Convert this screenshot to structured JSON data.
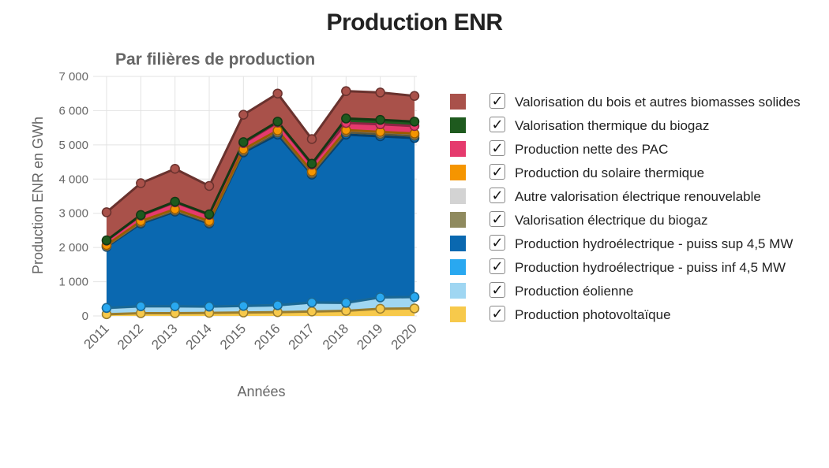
{
  "title": "Production ENR",
  "chart_data": {
    "type": "area",
    "stacked": true,
    "title": "Par filières de production",
    "xlabel": "Années",
    "ylabel": "Production ENR en GWh",
    "ylim": [
      0,
      7000
    ],
    "yticks": [
      0,
      1000,
      2000,
      3000,
      4000,
      5000,
      6000,
      7000
    ],
    "ytick_labels": [
      "0",
      "1 000",
      "2 000",
      "3 000",
      "4 000",
      "5 000",
      "6 000",
      "7 000"
    ],
    "categories": [
      "2011",
      "2012",
      "2013",
      "2014",
      "2015",
      "2016",
      "2017",
      "2018",
      "2019",
      "2020"
    ],
    "grid": true,
    "legend_position": "right",
    "series": [
      {
        "name": "Production photovoltaïque",
        "color": "#f7c94b",
        "values": [
          50,
          80,
          80,
          90,
          100,
          110,
          130,
          150,
          210,
          220
        ]
      },
      {
        "name": "Production éolienne",
        "color": "#9fd6f2",
        "values": [
          180,
          200,
          200,
          180,
          190,
          200,
          260,
          230,
          330,
          330
        ]
      },
      {
        "name": "Production hydroélectrique - puiss inf 4,5 MW",
        "color": "#29a8f0",
        "values": [
          5,
          5,
          5,
          5,
          5,
          5,
          5,
          5,
          5,
          5
        ]
      },
      {
        "name": "Production hydroélectrique - puiss sup 4,5 MW",
        "color": "#0a68b0",
        "values": [
          1785,
          2415,
          2765,
          2425,
          4485,
          4985,
          3735,
          4915,
          4705,
          4645
        ]
      },
      {
        "name": "Valorisation électrique du biogaz",
        "color": "#8f8a5e",
        "values": [
          20,
          30,
          30,
          30,
          40,
          60,
          40,
          70,
          70,
          70
        ]
      },
      {
        "name": "Autre valorisation électrique renouvelable",
        "color": "#d3d3d3",
        "values": [
          20,
          30,
          30,
          30,
          40,
          50,
          40,
          50,
          50,
          50
        ]
      },
      {
        "name": "Production du solaire thermique",
        "color": "#f59500",
        "values": [
          10,
          10,
          10,
          10,
          10,
          10,
          10,
          10,
          10,
          10
        ]
      },
      {
        "name": "Production nette des PAC",
        "color": "#e53a6d",
        "values": [
          130,
          160,
          200,
          180,
          180,
          230,
          200,
          210,
          220,
          220
        ]
      },
      {
        "name": "Valorisation thermique du biogaz",
        "color": "#1e5a1e",
        "values": [
          10,
          20,
          20,
          20,
          30,
          30,
          30,
          130,
          130,
          130
        ]
      },
      {
        "name": "Valorisation du bois et autres biomasses solides",
        "color": "#a9514a",
        "values": [
          820,
          930,
          960,
          830,
          800,
          820,
          720,
          800,
          800,
          750
        ]
      }
    ]
  }
}
